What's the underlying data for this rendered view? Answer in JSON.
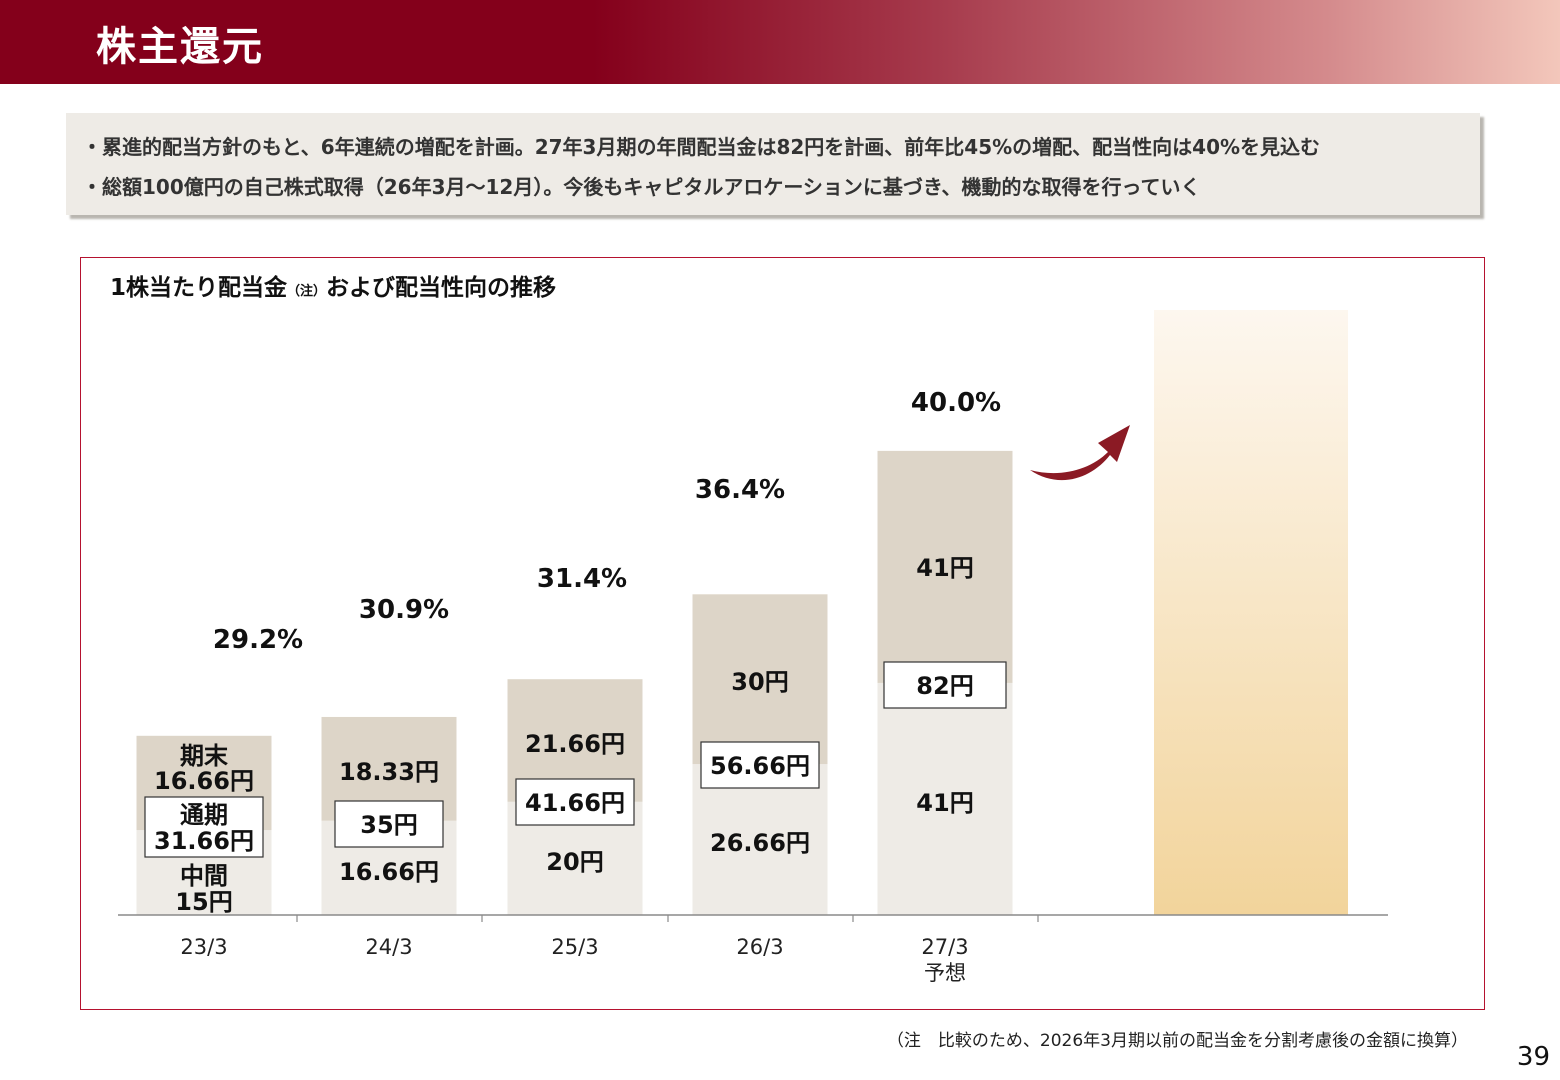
{
  "header": {
    "title": "株主還元"
  },
  "summary": {
    "lines": [
      "・累進的配当方針のもと、6年連続の増配を計画。27年3月期の年間配当金は82円を計画、前年比45%の増配、配当性向は40%を見込む",
      "・総額100億円の自己株式取得（26年3月～12月）。今後もキャピタルアロケーションに基づき、機動的な取得を行っていく"
    ]
  },
  "chart": {
    "title_main": "1株当たり配当金",
    "title_note": "（注）",
    "title_rest": "および配当性向の推移"
  },
  "chart_data": {
    "type": "bar",
    "stacked": true,
    "categories": [
      "23/3",
      "24/3",
      "25/3",
      "26/3",
      "27/3"
    ],
    "category_sublabels": [
      "",
      "",
      "",
      "",
      "予想"
    ],
    "series": [
      {
        "name": "中間",
        "values": [
          15,
          16.66,
          20,
          26.66,
          41
        ],
        "labels": [
          "15円",
          "16.66円",
          "20円",
          "26.66円",
          "41円"
        ]
      },
      {
        "name": "期末",
        "values": [
          16.66,
          18.33,
          21.66,
          30,
          41
        ],
        "labels": [
          "16.66円",
          "18.33円",
          "21.66円",
          "30円",
          "41円"
        ]
      }
    ],
    "totals": {
      "name": "通期",
      "values": [
        31.66,
        35,
        41.66,
        56.66,
        82
      ],
      "labels": [
        "31.66円",
        "35円",
        "41.66円",
        "56.66円",
        "82円"
      ]
    },
    "payout_ratio": {
      "values": [
        29.2,
        30.9,
        31.4,
        36.4,
        40.0
      ],
      "labels": [
        "29.2%",
        "30.9%",
        "31.4%",
        "36.4%",
        "40.0%"
      ]
    },
    "colors": {
      "interim": "#eeebe6",
      "final": "#ddd5c8",
      "line": "#b0301d",
      "arrow": "#8b1a24",
      "future_top": "#fdf7ef",
      "future_bottom": "#f2d49b"
    }
  },
  "footnote": "（注　比較のため、2026年3月期以前の配当金を分割考慮後の金額に換算）",
  "page_number": "39"
}
